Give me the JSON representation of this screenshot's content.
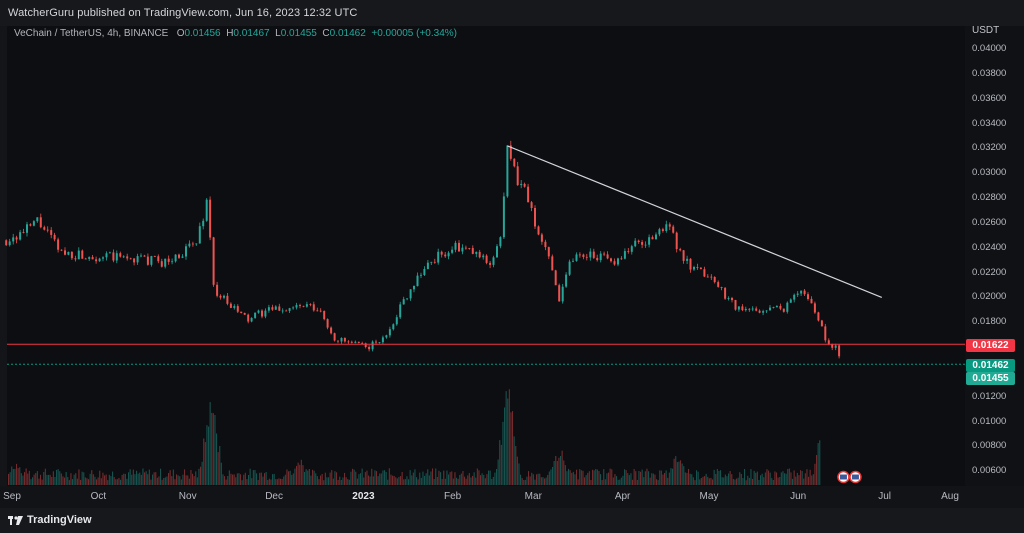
{
  "header": {
    "published": "WatcherGuru published on TradingView.com, Jun 16, 2023 12:32 UTC"
  },
  "legend": {
    "symbol": "VeChain / TetherUS, 4h, BINANCE",
    "o_label": "O",
    "o": "0.01456",
    "h_label": "H",
    "h": "0.01467",
    "l_label": "L",
    "l": "0.01455",
    "c_label": "C",
    "c": "0.01462",
    "change": "+0.00005 (+0.34%)"
  },
  "yaxis": {
    "unit": "USDT",
    "ticks": [
      "0.04000",
      "0.03800",
      "0.03600",
      "0.03400",
      "0.03200",
      "0.03000",
      "0.02800",
      "0.02600",
      "0.02400",
      "0.02200",
      "0.02000",
      "0.01800",
      "0.01200",
      "0.01000",
      "0.00800",
      "0.00600"
    ],
    "labels": [
      {
        "text": "0.01622",
        "color": "#f23645"
      },
      {
        "text": "0.01462",
        "color": "#089981"
      },
      {
        "text": "0.01455",
        "color": "#22ab94"
      }
    ]
  },
  "xaxis": {
    "ticks": [
      {
        "text": "Sep",
        "bold": false
      },
      {
        "text": "Oct",
        "bold": false
      },
      {
        "text": "Nov",
        "bold": false
      },
      {
        "text": "Dec",
        "bold": false
      },
      {
        "text": "2023",
        "bold": true
      },
      {
        "text": "Feb",
        "bold": false
      },
      {
        "text": "Mar",
        "bold": false
      },
      {
        "text": "Apr",
        "bold": false
      },
      {
        "text": "May",
        "bold": false
      },
      {
        "text": "Jun",
        "bold": false
      },
      {
        "text": "Jul",
        "bold": false
      },
      {
        "text": "Aug",
        "bold": false
      }
    ]
  },
  "footer": {
    "brand": "TradingView"
  },
  "colors": {
    "up": "#26a69a",
    "down": "#ef5350",
    "resistance": "#f23645",
    "support": "#089981",
    "trendline": "#d1d4dc"
  },
  "chart_data": {
    "type": "candlestick",
    "symbol": "VeChain / TetherUS",
    "interval": "4h",
    "exchange": "BINANCE",
    "ylim": [
      0.0058,
      0.041
    ],
    "price_path": [
      {
        "date": "2022-08-30",
        "price": 0.0246
      },
      {
        "date": "2022-09-05",
        "price": 0.0252
      },
      {
        "date": "2022-09-10",
        "price": 0.0262
      },
      {
        "date": "2022-09-18",
        "price": 0.0236
      },
      {
        "date": "2022-10-01",
        "price": 0.0233
      },
      {
        "date": "2022-10-15",
        "price": 0.0231
      },
      {
        "date": "2022-10-25",
        "price": 0.0228
      },
      {
        "date": "2022-11-04",
        "price": 0.0244
      },
      {
        "date": "2022-11-08",
        "price": 0.028
      },
      {
        "date": "2022-11-10",
        "price": 0.0208
      },
      {
        "date": "2022-11-15",
        "price": 0.0194
      },
      {
        "date": "2022-11-22",
        "price": 0.0182
      },
      {
        "date": "2022-11-28",
        "price": 0.0189
      },
      {
        "date": "2022-12-05",
        "price": 0.0191
      },
      {
        "date": "2022-12-12",
        "price": 0.0193
      },
      {
        "date": "2022-12-17",
        "price": 0.0188
      },
      {
        "date": "2022-12-22",
        "price": 0.0167
      },
      {
        "date": "2022-12-27",
        "price": 0.0163
      },
      {
        "date": "2023-01-02",
        "price": 0.016
      },
      {
        "date": "2023-01-08",
        "price": 0.0166
      },
      {
        "date": "2023-01-14",
        "price": 0.0193
      },
      {
        "date": "2023-01-20",
        "price": 0.0218
      },
      {
        "date": "2023-01-26",
        "price": 0.0232
      },
      {
        "date": "2023-02-02",
        "price": 0.024
      },
      {
        "date": "2023-02-08",
        "price": 0.0236
      },
      {
        "date": "2023-02-14",
        "price": 0.0228
      },
      {
        "date": "2023-02-18",
        "price": 0.025
      },
      {
        "date": "2023-02-20",
        "price": 0.032
      },
      {
        "date": "2023-02-23",
        "price": 0.0296
      },
      {
        "date": "2023-02-27",
        "price": 0.0283
      },
      {
        "date": "2023-03-02",
        "price": 0.0252
      },
      {
        "date": "2023-03-07",
        "price": 0.0232
      },
      {
        "date": "2023-03-10",
        "price": 0.0199
      },
      {
        "date": "2023-03-14",
        "price": 0.0232
      },
      {
        "date": "2023-03-21",
        "price": 0.0236
      },
      {
        "date": "2023-03-28",
        "price": 0.0228
      },
      {
        "date": "2023-04-05",
        "price": 0.0242
      },
      {
        "date": "2023-04-12",
        "price": 0.0248
      },
      {
        "date": "2023-04-18",
        "price": 0.0262
      },
      {
        "date": "2023-04-20",
        "price": 0.0238
      },
      {
        "date": "2023-04-25",
        "price": 0.0222
      },
      {
        "date": "2023-05-01",
        "price": 0.0218
      },
      {
        "date": "2023-05-06",
        "price": 0.0204
      },
      {
        "date": "2023-05-12",
        "price": 0.0189
      },
      {
        "date": "2023-05-20",
        "price": 0.019
      },
      {
        "date": "2023-05-28",
        "price": 0.0192
      },
      {
        "date": "2023-06-01",
        "price": 0.0207
      },
      {
        "date": "2023-06-05",
        "price": 0.0198
      },
      {
        "date": "2023-06-08",
        "price": 0.0183
      },
      {
        "date": "2023-06-12",
        "price": 0.0158
      },
      {
        "date": "2023-06-14",
        "price": 0.0164
      },
      {
        "date": "2023-06-16",
        "price": 0.01462
      }
    ],
    "volume_spikes": [
      {
        "date": "2022-09-02",
        "level": 0.22
      },
      {
        "date": "2022-11-09",
        "level": 0.85
      },
      {
        "date": "2022-12-10",
        "level": 0.25
      },
      {
        "date": "2023-02-20",
        "level": 0.95
      },
      {
        "date": "2023-03-10",
        "level": 0.35
      },
      {
        "date": "2023-04-20",
        "level": 0.3
      },
      {
        "date": "2023-06-10",
        "level": 0.78
      }
    ],
    "horizontal_lines": [
      {
        "price": 0.01622,
        "role": "resistance"
      },
      {
        "price": 0.01462,
        "role": "support"
      }
    ],
    "trendline": {
      "from": {
        "date": "2023-02-20",
        "price": 0.0322
      },
      "to": {
        "date": "2023-06-30",
        "price": 0.02
      }
    }
  }
}
